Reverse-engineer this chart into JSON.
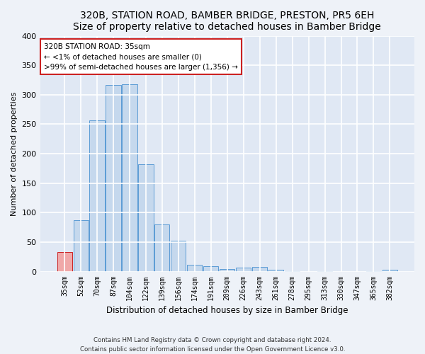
{
  "title": "320B, STATION ROAD, BAMBER BRIDGE, PRESTON, PR5 6EH",
  "subtitle": "Size of property relative to detached houses in Bamber Bridge",
  "xlabel": "Distribution of detached houses by size in Bamber Bridge",
  "ylabel": "Number of detached properties",
  "footer_line1": "Contains HM Land Registry data © Crown copyright and database right 2024.",
  "footer_line2": "Contains public sector information licensed under the Open Government Licence v3.0.",
  "annotation_title": "320B STATION ROAD: 35sqm",
  "annotation_line2": "← <1% of detached houses are smaller (0)",
  "annotation_line3": ">99% of semi-detached houses are larger (1,356) →",
  "bar_color": "#c5d8ed",
  "bar_edge_color": "#5b9bd5",
  "highlight_color": "#f0a8a8",
  "highlight_edge_color": "#cc2222",
  "highlight_index": 0,
  "categories": [
    "35sqm",
    "52sqm",
    "70sqm",
    "87sqm",
    "104sqm",
    "122sqm",
    "139sqm",
    "156sqm",
    "174sqm",
    "191sqm",
    "209sqm",
    "226sqm",
    "243sqm",
    "261sqm",
    "278sqm",
    "295sqm",
    "313sqm",
    "330sqm",
    "347sqm",
    "365sqm",
    "382sqm"
  ],
  "values": [
    33,
    87,
    256,
    317,
    318,
    182,
    80,
    52,
    12,
    9,
    4,
    7,
    8,
    3,
    1,
    0,
    1,
    0,
    0,
    1,
    3
  ],
  "ylim": [
    0,
    400
  ],
  "yticks": [
    0,
    50,
    100,
    150,
    200,
    250,
    300,
    350,
    400
  ],
  "bg_color": "#eef2f8",
  "plot_bg_color": "#e0e8f4",
  "grid_color": "#ffffff",
  "title_fontsize": 10,
  "subtitle_fontsize": 9,
  "annotation_fontsize": 7.5,
  "xlabel_fontsize": 8.5,
  "ylabel_fontsize": 8,
  "tick_fontsize": 7
}
